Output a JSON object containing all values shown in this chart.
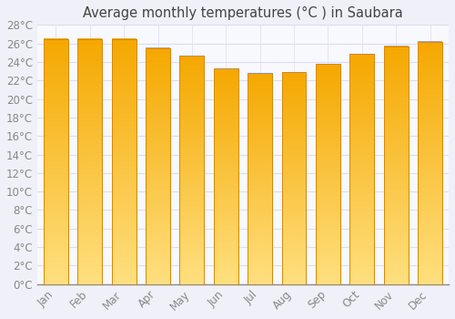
{
  "title": "Average monthly temperatures (°C ) in Saubara",
  "months": [
    "Jan",
    "Feb",
    "Mar",
    "Apr",
    "May",
    "Jun",
    "Jul",
    "Aug",
    "Sep",
    "Oct",
    "Nov",
    "Dec"
  ],
  "values": [
    26.5,
    26.5,
    26.5,
    25.5,
    24.7,
    23.3,
    22.8,
    22.9,
    23.8,
    24.9,
    25.7,
    26.2
  ],
  "bar_color_bottom": "#F5A800",
  "bar_color_top": "#FFE080",
  "bar_edge_color": "#D4890A",
  "ylim": [
    0,
    28
  ],
  "ytick_step": 2,
  "background_color": "#F0F0F8",
  "plot_bg_color": "#F8F8FF",
  "grid_color": "#DDDDEE",
  "title_fontsize": 10.5,
  "tick_fontsize": 8.5,
  "title_color": "#444444",
  "tick_color": "#888888"
}
